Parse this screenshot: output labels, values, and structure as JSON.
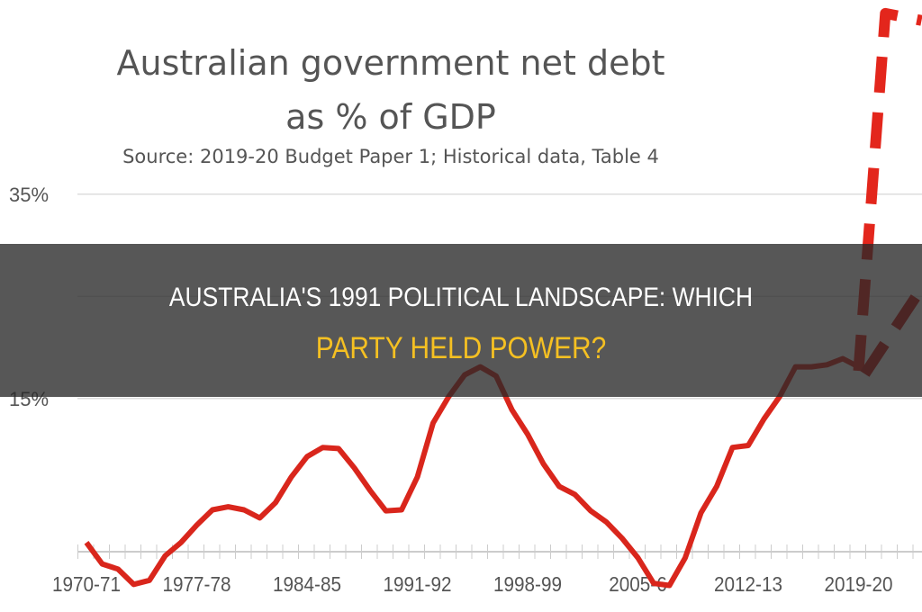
{
  "chart_data": {
    "type": "line",
    "title": "Australian government net debt",
    "title_line2": "as % of GDP",
    "subtitle": "Source: 2019-20 Budget Paper 1; Historical data, Table 4",
    "xlabel": "",
    "ylabel": "",
    "ylim": [
      -5,
      53
    ],
    "y_ticks": [
      {
        "value": 35,
        "label": "35%"
      },
      {
        "value": 15,
        "label": "15%"
      }
    ],
    "grid": true,
    "x_tick_labels": [
      "1970-71",
      "1977-78",
      "1984-85",
      "1991-92",
      "1998-99",
      "2005-6",
      "2012-13",
      "2019-20"
    ],
    "x_years_start": "1970-71",
    "series": [
      {
        "style": "solid",
        "color": "#d9261c",
        "values": [
          0.9,
          -1.2,
          -1.7,
          -3.2,
          -2.8,
          -0.4,
          0.9,
          2.6,
          4.1,
          4.4,
          4.1,
          3.3,
          4.8,
          7.3,
          9.3,
          10.2,
          10.1,
          8.2,
          6.0,
          4.0,
          4.1,
          7.3,
          12.6,
          15.2,
          17.3,
          18.1,
          17.2,
          13.9,
          11.5,
          8.6,
          6.4,
          5.6,
          4.0,
          2.9,
          1.3,
          -0.6,
          -3.1,
          -3.3,
          -0.6,
          3.8,
          6.4,
          10.2,
          10.4,
          13.0,
          15.2,
          18.1,
          18.1,
          18.3,
          18.9,
          18.1
        ]
      },
      {
        "style": "dashed",
        "color": "#e3261c",
        "points": [
          [
            49,
            17.7
          ],
          [
            50.7,
            52.7
          ],
          [
            53,
            52.0
          ]
        ]
      },
      {
        "style": "dashed",
        "color": "#c91f18",
        "points": [
          [
            49.4,
            17.4
          ],
          [
            53,
            25.8
          ]
        ]
      }
    ]
  },
  "banner": {
    "line1": "AUSTRALIA'S 1991 POLITICAL LANDSCAPE: WHICH",
    "line2": "PARTY HELD POWER?",
    "text_color_1": "#ffffff",
    "text_color_2": "#f5c022"
  }
}
